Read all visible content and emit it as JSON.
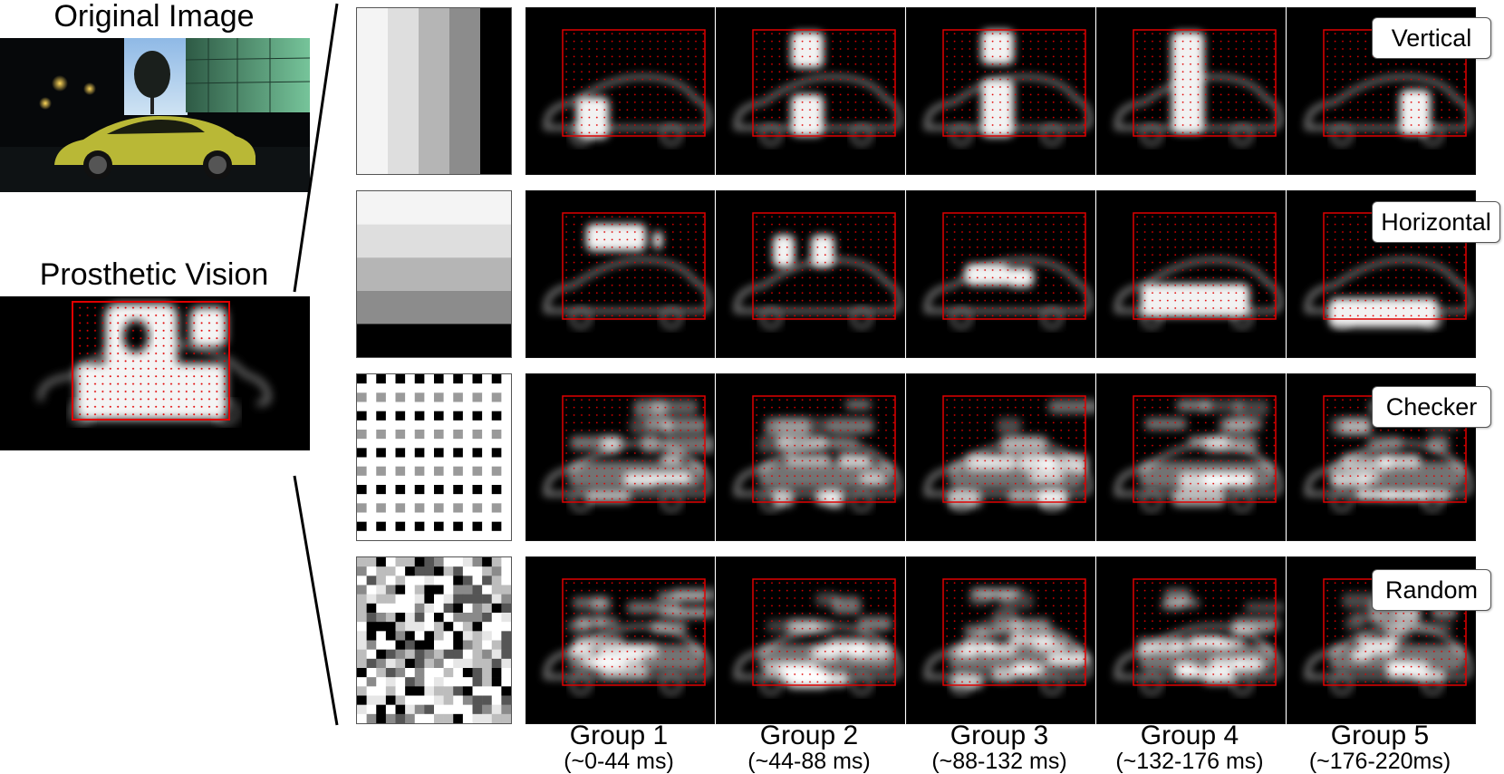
{
  "titles": {
    "original": "Original Image",
    "prosthetic": "Prosthetic Vision"
  },
  "row_labels": [
    "Vertical",
    "Horizontal",
    "Checker",
    "Random"
  ],
  "groups": [
    {
      "name": "Group 1",
      "range": "(~0-44 ms)"
    },
    {
      "name": "Group 2",
      "range": "(~44-88 ms)"
    },
    {
      "name": "Group 3",
      "range": "(~88-132 ms)"
    },
    {
      "name": "Group 4",
      "range": "(~132-176 ms)"
    },
    {
      "name": "Group 5",
      "range": "(~176-220ms)"
    }
  ],
  "colors": {
    "electrode_grid": "#e00000",
    "background": "#000000",
    "phosphene": "#ffffff",
    "car": "#c9c83a",
    "sky": "#9fc7ea",
    "building": "#4f9a78"
  },
  "pattern_gray_levels": {
    "vertical": [
      0.96,
      0.86,
      0.68,
      0.5,
      0.0
    ],
    "horizontal": [
      0.96,
      0.86,
      0.68,
      0.5,
      0.0
    ]
  }
}
